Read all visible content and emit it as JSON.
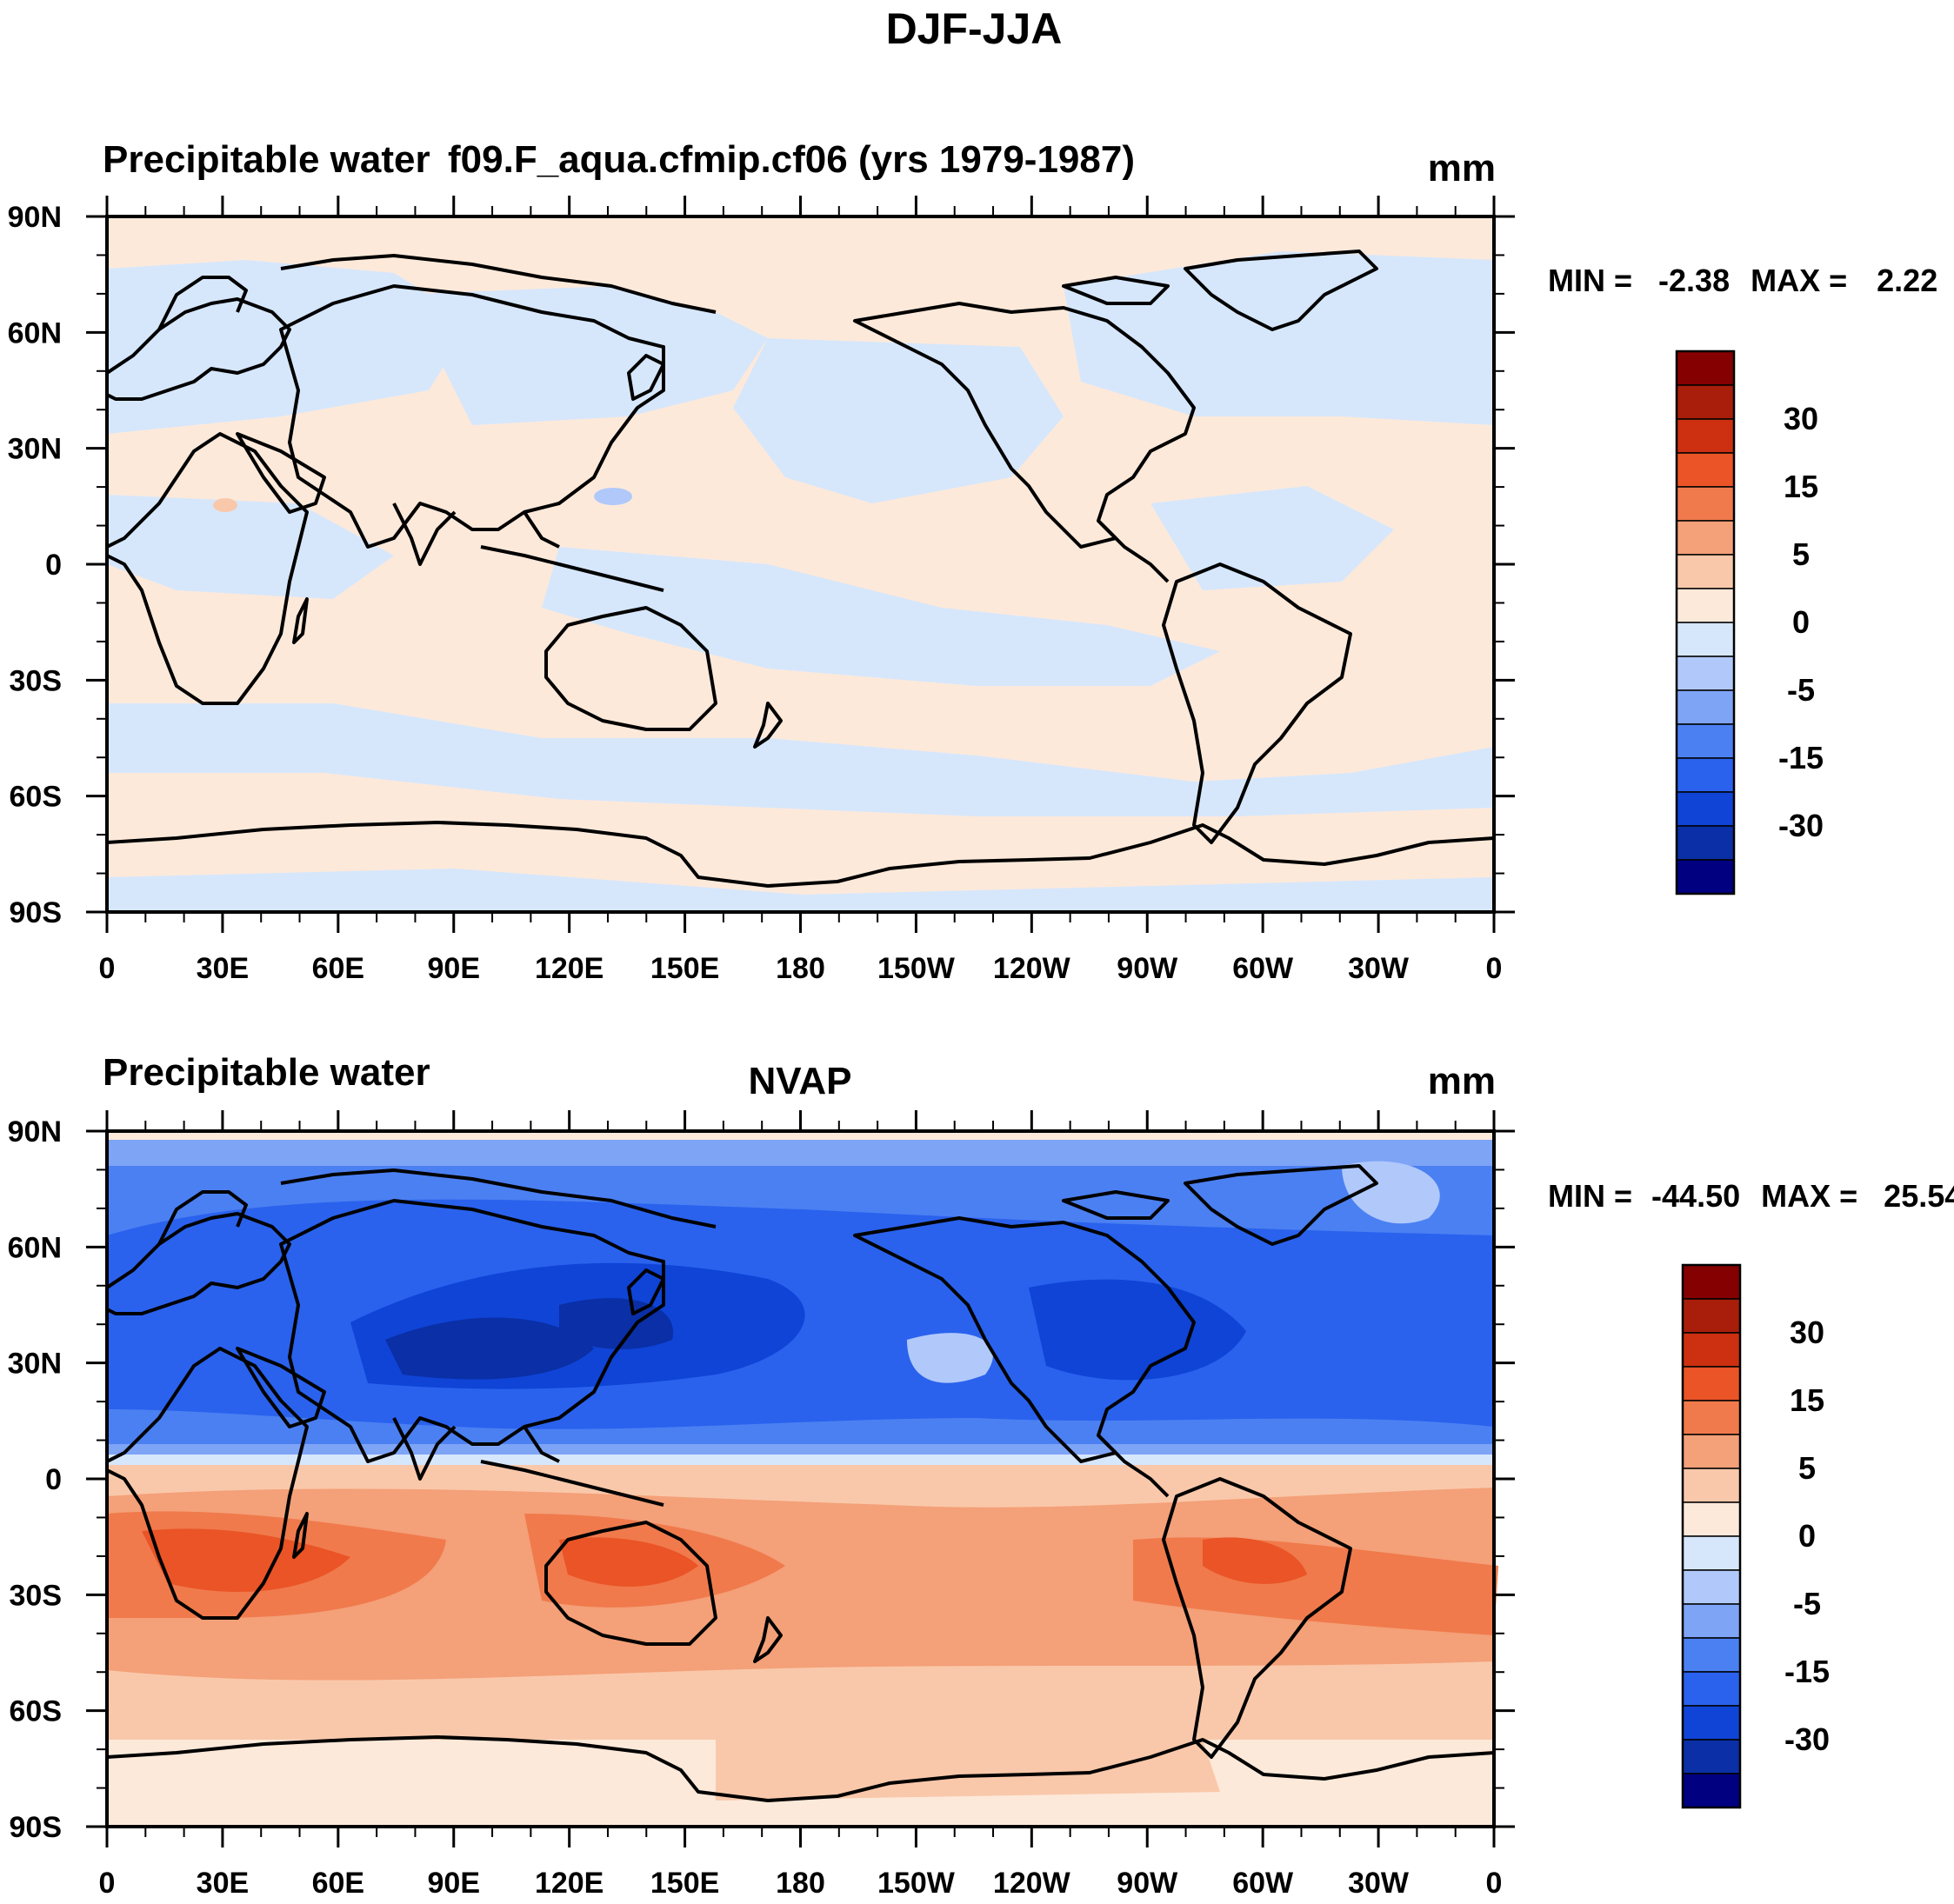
{
  "figure": {
    "title": "DJF-JJA"
  },
  "axes": {
    "lat_labels": [
      "90N",
      "60N",
      "30N",
      "0",
      "30S",
      "60S",
      "90S"
    ],
    "lon_labels": [
      "0",
      "30E",
      "60E",
      "90E",
      "120E",
      "150E",
      "180",
      "150W",
      "120W",
      "90W",
      "60W",
      "30W",
      "0"
    ]
  },
  "colorbar": {
    "labels": [
      "30",
      "15",
      "5",
      "0",
      "-5",
      "-15",
      "-30"
    ],
    "levels": [
      -40,
      -30,
      -20,
      -15,
      -10,
      -5,
      -2,
      0,
      2,
      5,
      10,
      15,
      20,
      30,
      40
    ],
    "colors": [
      "#000080",
      "#0a2fa6",
      "#0f44d6",
      "#2a62ee",
      "#4b80f2",
      "#7ea4f6",
      "#b0c9fa",
      "#d6e7fc",
      "#fde9da",
      "#f9c8aa",
      "#f4a078",
      "#f07a4c",
      "#ea5426",
      "#cc3010",
      "#a81e0a",
      "#850000"
    ]
  },
  "panels": [
    {
      "left_title": "Precipitable water",
      "center_title": "f09.F_aqua.cfmip.cf06 (yrs 1979-1987)",
      "units": "mm",
      "stats": {
        "min_label": "MIN =",
        "min_value": "-2.38",
        "max_label": "MAX =",
        "max_value": "2.22"
      }
    },
    {
      "left_title": "Precipitable water",
      "center_title": "NVAP",
      "units": "mm",
      "stats": {
        "min_label": "MIN =",
        "min_value": "-44.50",
        "max_label": "MAX =",
        "max_value": "25.54"
      }
    }
  ]
}
